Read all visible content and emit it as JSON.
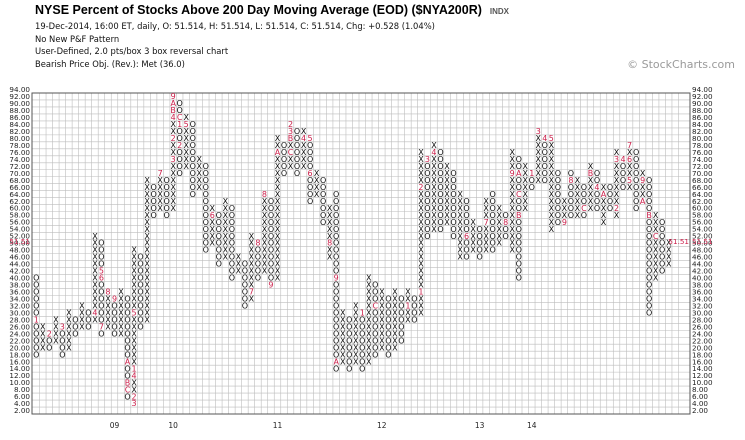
{
  "header": {
    "title": "NYSE Percent of Stocks Above 200 Day Moving Average (EOD) ($NYA200R)",
    "exchange": "INDX",
    "lines": [
      "19-Dec-2014, 16:00 ET, daily, O: 51.514, H: 51.514, L: 51.514, C: 51.514, Chg: +0.528 (1.04%)",
      "No New P&F Pattern",
      "User-Defined, 2.0 pts/box 3 box reversal chart",
      "Bearish Price Obj. (Rev.): Met (36.0)"
    ]
  },
  "watermark": "© StockCharts.com",
  "chart_data": {
    "type": "point-and-figure",
    "box_size": 2,
    "reversal": 3,
    "ylim": [
      2,
      94
    ],
    "y_ticks": [
      "2.00",
      "4.00",
      "6.00",
      "8.00",
      "10.00",
      "12.00",
      "14.00",
      "16.00",
      "18.00",
      "20.00",
      "22.00",
      "24.00",
      "26.00",
      "28.00",
      "30.00",
      "32.00",
      "34.00",
      "36.00",
      "38.00",
      "40.00",
      "42.00",
      "44.00",
      "46.00",
      "48.00",
      "50.00",
      "52.00",
      "54.00",
      "56.00",
      "58.00",
      "60.00",
      "62.00",
      "64.00",
      "66.00",
      "68.00",
      "70.00",
      "72.00",
      "74.00",
      "76.00",
      "78.00",
      "80.00",
      "82.00",
      "84.00",
      "86.00",
      "88.00",
      "90.00",
      "92.00",
      "94.00"
    ],
    "current_price_label": "51.51",
    "year_labels": [
      {
        "label": "09",
        "column": 12
      },
      {
        "label": "10",
        "column": 21
      },
      {
        "label": "11",
        "column": 37
      },
      {
        "label": "12",
        "column": 53
      },
      {
        "label": "13",
        "column": 68
      },
      {
        "label": "14",
        "column": 76
      }
    ],
    "columns": [
      {
        "t": "O",
        "hi": 40,
        "lo": 18,
        "m": {
          "28": "1"
        }
      },
      {
        "t": "X",
        "hi": 26,
        "lo": 20
      },
      {
        "t": "O",
        "hi": 24,
        "lo": 20,
        "m": {
          "24": "2"
        }
      },
      {
        "t": "X",
        "hi": 28,
        "lo": 22
      },
      {
        "t": "O",
        "hi": 26,
        "lo": 18,
        "m": {
          "26": "3"
        }
      },
      {
        "t": "X",
        "hi": 30,
        "lo": 20
      },
      {
        "t": "O",
        "hi": 28,
        "lo": 24
      },
      {
        "t": "X",
        "hi": 32,
        "lo": 26
      },
      {
        "t": "O",
        "hi": 30,
        "lo": 26
      },
      {
        "t": "X",
        "hi": 52,
        "lo": 28,
        "m": {
          "30": "4"
        }
      },
      {
        "t": "O",
        "hi": 50,
        "lo": 24,
        "m": {
          "42": "5",
          "40": "6",
          "26": "7"
        }
      },
      {
        "t": "X",
        "hi": 36,
        "lo": 26,
        "m": {
          "36": "8"
        }
      },
      {
        "t": "O",
        "hi": 34,
        "lo": 24,
        "m": {
          "34": "9"
        }
      },
      {
        "t": "X",
        "hi": 36,
        "lo": 24
      },
      {
        "t": "O",
        "hi": 34,
        "lo": 6,
        "m": {
          "16": "A",
          "10": "B",
          "8": "C"
        }
      },
      {
        "t": "X",
        "hi": 48,
        "lo": 4,
        "m": {
          "14": "1",
          "12": "4",
          "6": "2",
          "4": "3",
          "30": "5"
        }
      },
      {
        "t": "O",
        "hi": 46,
        "lo": 26
      },
      {
        "t": "X",
        "hi": 68,
        "lo": 28
      },
      {
        "t": "O",
        "hi": 66,
        "lo": 58
      },
      {
        "t": "X",
        "hi": 70,
        "lo": 60,
        "m": {
          "70": "7"
        }
      },
      {
        "t": "O",
        "hi": 68,
        "lo": 58
      },
      {
        "t": "X",
        "hi": 92,
        "lo": 60,
        "m": {
          "92": "9",
          "90": "A",
          "88": "B",
          "86": "4",
          "80": "2",
          "74": "3"
        }
      },
      {
        "t": "O",
        "hi": 90,
        "lo": 70,
        "m": {
          "86": "C",
          "84": "1",
          "78": "2"
        }
      },
      {
        "t": "X",
        "hi": 86,
        "lo": 72,
        "m": {
          "84": "5"
        }
      },
      {
        "t": "O",
        "hi": 84,
        "lo": 64
      },
      {
        "t": "X",
        "hi": 74,
        "lo": 66
      },
      {
        "t": "O",
        "hi": 72,
        "lo": 48
      },
      {
        "t": "X",
        "hi": 60,
        "lo": 50,
        "m": {
          "58": "6"
        }
      },
      {
        "t": "O",
        "hi": 58,
        "lo": 44
      },
      {
        "t": "X",
        "hi": 62,
        "lo": 46
      },
      {
        "t": "O",
        "hi": 60,
        "lo": 40
      },
      {
        "t": "X",
        "hi": 46,
        "lo": 42
      },
      {
        "t": "O",
        "hi": 44,
        "lo": 32
      },
      {
        "t": "X",
        "hi": 52,
        "lo": 34,
        "m": {
          "36": "7"
        }
      },
      {
        "t": "O",
        "hi": 50,
        "lo": 40,
        "m": {
          "50": "8"
        }
      },
      {
        "t": "X",
        "hi": 64,
        "lo": 42,
        "m": {
          "64": "8"
        }
      },
      {
        "t": "O",
        "hi": 62,
        "lo": 38,
        "m": {
          "38": "9"
        }
      },
      {
        "t": "X",
        "hi": 80,
        "lo": 40,
        "m": {
          "76": "A"
        }
      },
      {
        "t": "O",
        "hi": 78,
        "lo": 70
      },
      {
        "t": "X",
        "hi": 84,
        "lo": 72,
        "m": {
          "84": "2",
          "82": "3",
          "80": "B",
          "76": "C"
        }
      },
      {
        "t": "O",
        "hi": 82,
        "lo": 70
      },
      {
        "t": "X",
        "hi": 82,
        "lo": 72,
        "m": {
          "80": "4"
        }
      },
      {
        "t": "O",
        "hi": 80,
        "lo": 62,
        "m": {
          "80": "5",
          "70": "6"
        }
      },
      {
        "t": "X",
        "hi": 70,
        "lo": 64
      },
      {
        "t": "O",
        "hi": 68,
        "lo": 56
      },
      {
        "t": "X",
        "hi": 60,
        "lo": 46,
        "m": {
          "50": "8"
        }
      },
      {
        "t": "O",
        "hi": 64,
        "lo": 14,
        "m": {
          "40": "9",
          "16": "A"
        }
      },
      {
        "t": "X",
        "hi": 30,
        "lo": 16
      },
      {
        "t": "O",
        "hi": 28,
        "lo": 14
      },
      {
        "t": "X",
        "hi": 32,
        "lo": 16
      },
      {
        "t": "O",
        "hi": 30,
        "lo": 14,
        "m": {
          "30": "1"
        }
      },
      {
        "t": "X",
        "hi": 40,
        "lo": 16,
        "m": {
          "12": "A"
        }
      },
      {
        "t": "O",
        "hi": 38,
        "lo": 18,
        "m": {
          "32": "C"
        }
      },
      {
        "t": "X",
        "hi": 36,
        "lo": 20
      },
      {
        "t": "O",
        "hi": 34,
        "lo": 18
      },
      {
        "t": "X",
        "hi": 36,
        "lo": 20
      },
      {
        "t": "O",
        "hi": 34,
        "lo": 22
      },
      {
        "t": "X",
        "hi": 36,
        "lo": 28,
        "m": {
          "32": "1"
        }
      },
      {
        "t": "O",
        "hi": 34,
        "lo": 28
      },
      {
        "t": "X",
        "hi": 76,
        "lo": 30,
        "m": {
          "66": "2",
          "36": "1"
        }
      },
      {
        "t": "O",
        "hi": 74,
        "lo": 52,
        "m": {
          "74": "3"
        }
      },
      {
        "t": "X",
        "hi": 78,
        "lo": 54,
        "m": {
          "76": "4"
        }
      },
      {
        "t": "O",
        "hi": 76,
        "lo": 54
      },
      {
        "t": "X",
        "hi": 72,
        "lo": 56
      },
      {
        "t": "O",
        "hi": 70,
        "lo": 52,
        "m": {
          "72": "5"
        }
      },
      {
        "t": "X",
        "hi": 64,
        "lo": 46
      },
      {
        "t": "O",
        "hi": 62,
        "lo": 46,
        "m": {
          "52": "6"
        }
      },
      {
        "t": "X",
        "hi": 56,
        "lo": 48
      },
      {
        "t": "O",
        "hi": 54,
        "lo": 46
      },
      {
        "t": "X",
        "hi": 62,
        "lo": 48,
        "m": {
          "56": "7"
        }
      },
      {
        "t": "O",
        "hi": 64,
        "lo": 48
      },
      {
        "t": "X",
        "hi": 60,
        "lo": 50
      },
      {
        "t": "O",
        "hi": 58,
        "lo": 52,
        "m": {
          "56": "8"
        }
      },
      {
        "t": "X",
        "hi": 76,
        "lo": 48,
        "m": {
          "70": "9"
        }
      },
      {
        "t": "O",
        "hi": 74,
        "lo": 40,
        "m": {
          "70": "A",
          "64": "C",
          "58": "B"
        }
      },
      {
        "t": "X",
        "hi": 72,
        "lo": 60
      },
      {
        "t": "O",
        "hi": 70,
        "lo": 66,
        "m": {
          "70": "1"
        }
      },
      {
        "t": "X",
        "hi": 82,
        "lo": 68,
        "m": {
          "82": "3"
        }
      },
      {
        "t": "O",
        "hi": 80,
        "lo": 68,
        "m": {
          "80": "4"
        }
      },
      {
        "t": "X",
        "hi": 80,
        "lo": 54,
        "m": {
          "80": "5"
        }
      },
      {
        "t": "O",
        "hi": 70,
        "lo": 56,
        "m": {
          "72": "6"
        }
      },
      {
        "t": "X",
        "hi": 62,
        "lo": 56,
        "m": {
          "56": "9"
        }
      },
      {
        "t": "O",
        "hi": 70,
        "lo": 58,
        "m": {
          "68": "8"
        }
      },
      {
        "t": "X",
        "hi": 68,
        "lo": 58
      },
      {
        "t": "O",
        "hi": 66,
        "lo": 58,
        "m": {
          "60": "C"
        }
      },
      {
        "t": "X",
        "hi": 72,
        "lo": 60,
        "m": {
          "70": "B"
        }
      },
      {
        "t": "O",
        "hi": 70,
        "lo": 60,
        "m": {
          "66": "4"
        }
      },
      {
        "t": "X",
        "hi": 66,
        "lo": 56,
        "m": {
          "64": "A"
        }
      },
      {
        "t": "O",
        "hi": 66,
        "lo": 60
      },
      {
        "t": "X",
        "hi": 76,
        "lo": 58,
        "m": {
          "74": "3",
          "60": "2"
        }
      },
      {
        "t": "O",
        "hi": 74,
        "lo": 66,
        "m": {
          "74": "4"
        }
      },
      {
        "t": "X",
        "hi": 78,
        "lo": 66,
        "m": {
          "78": "7",
          "74": "6",
          "68": "5"
        }
      },
      {
        "t": "O",
        "hi": 76,
        "lo": 60
      },
      {
        "t": "X",
        "hi": 70,
        "lo": 62,
        "m": {
          "68": "9",
          "62": "A"
        }
      },
      {
        "t": "O",
        "hi": 68,
        "lo": 30,
        "m": {
          "58": "B"
        }
      },
      {
        "t": "X",
        "hi": 58,
        "lo": 40,
        "m": {
          "52": "C"
        }
      },
      {
        "t": "O",
        "hi": 56,
        "lo": 42
      },
      {
        "t": "X",
        "hi": 50,
        "lo": 44
      }
    ]
  }
}
